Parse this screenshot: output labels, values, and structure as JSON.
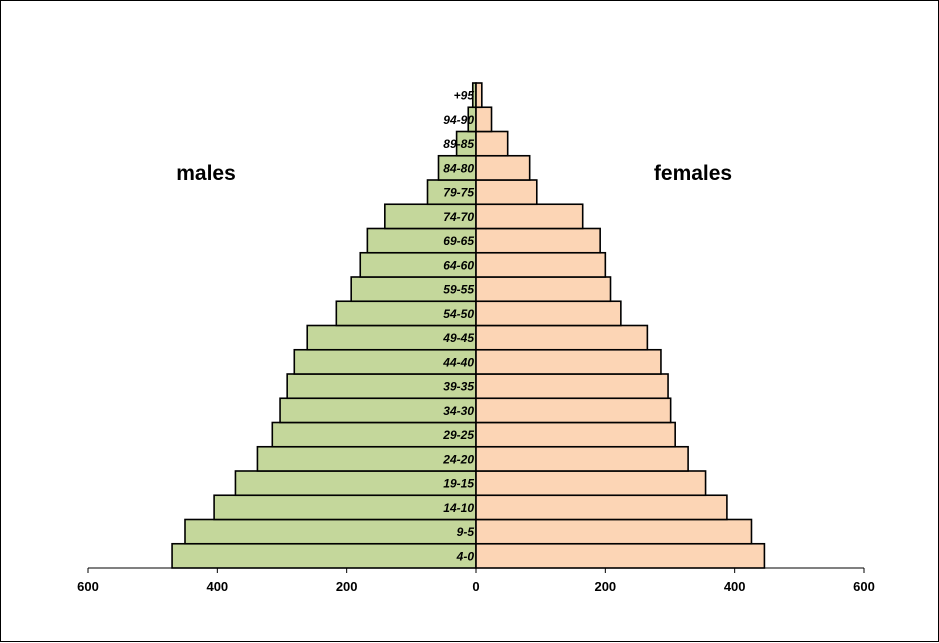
{
  "chart_data": {
    "type": "bar",
    "orientation": "horizontal-population-pyramid",
    "categories": [
      "4-0",
      "9-5",
      "14-10",
      "19-15",
      "24-20",
      "29-25",
      "34-30",
      "39-35",
      "44-40",
      "49-45",
      "54-50",
      "59-55",
      "64-60",
      "69-65",
      "74-70",
      "79-75",
      "84-80",
      "89-85",
      "94-90",
      "+95"
    ],
    "series": [
      {
        "name": "males",
        "color": "#c4d79b",
        "values": [
          470,
          450,
          405,
          372,
          338,
          315,
          303,
          292,
          281,
          261,
          216,
          193,
          179,
          168,
          141,
          75,
          58,
          30,
          12,
          5
        ]
      },
      {
        "name": "females",
        "color": "#fcd5b5",
        "values": [
          446,
          426,
          388,
          355,
          328,
          308,
          301,
          297,
          286,
          265,
          224,
          208,
          200,
          192,
          165,
          94,
          83,
          49,
          24,
          9
        ]
      }
    ],
    "xlim": [
      -600,
      600
    ],
    "xticks": [
      -600,
      -400,
      -200,
      0,
      200,
      400,
      600
    ],
    "xtick_labels": [
      "600",
      "400",
      "200",
      "0",
      "200",
      "400",
      "600"
    ],
    "grid": false,
    "title": "",
    "xlabel": "",
    "ylabel": ""
  }
}
